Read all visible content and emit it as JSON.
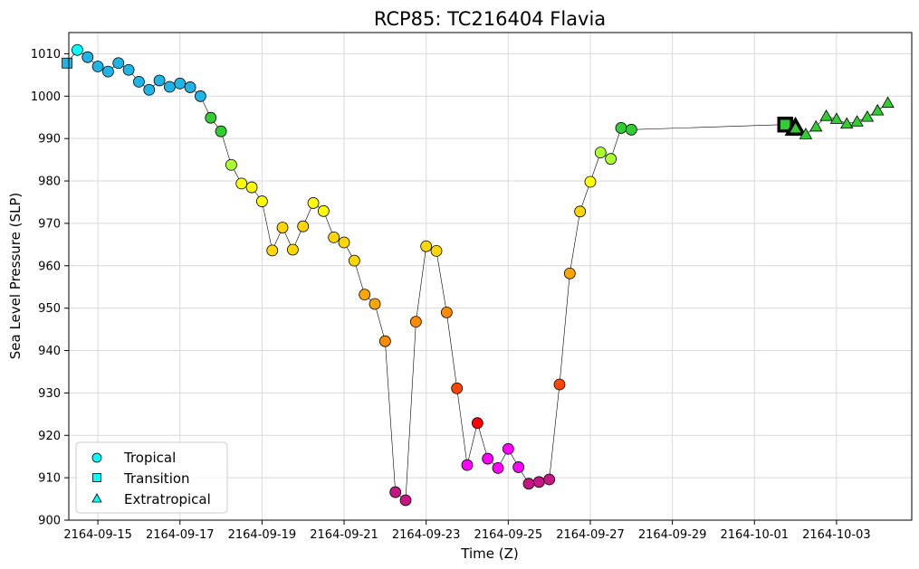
{
  "chart_data": {
    "type": "scatter",
    "title": "RCP85: TC216404 Flavia",
    "xlabel": "Time (Z)",
    "ylabel": "Sea Level Pressure (SLP)",
    "ylim": [
      900,
      1015
    ],
    "xlim": [
      "2164-09-14 07:00",
      "2164-10-04 20:00"
    ],
    "grid": true,
    "yticks": [
      900,
      910,
      920,
      930,
      940,
      950,
      960,
      970,
      980,
      990,
      1000,
      1010
    ],
    "xticks": [
      "2164-09-15",
      "2164-09-17",
      "2164-09-19",
      "2164-09-21",
      "2164-09-23",
      "2164-09-25",
      "2164-09-27",
      "2164-09-29",
      "2164-10-01",
      "2164-10-03"
    ],
    "legend": {
      "position": "bottom-left",
      "entries": [
        {
          "label": "Tropical",
          "marker": "circle",
          "color": "#00ffff"
        },
        {
          "label": "Transition",
          "marker": "square",
          "color": "#00ffff"
        },
        {
          "label": "Extratropical",
          "marker": "triangle",
          "color": "#00ffff"
        }
      ]
    },
    "points": [
      {
        "t": "2164-09-14 06:00",
        "slp": 1007.8,
        "marker": "square",
        "color": "#1eb4e6"
      },
      {
        "t": "2164-09-14 12:00",
        "slp": 1010.9,
        "marker": "circle",
        "color": "#00ffff"
      },
      {
        "t": "2164-09-14 18:00",
        "slp": 1009.2,
        "marker": "circle",
        "color": "#1eb4e6"
      },
      {
        "t": "2164-09-15 00:00",
        "slp": 1007.0,
        "marker": "circle",
        "color": "#1eb4e6"
      },
      {
        "t": "2164-09-15 06:00",
        "slp": 1005.8,
        "marker": "circle",
        "color": "#1eb4e6"
      },
      {
        "t": "2164-09-15 12:00",
        "slp": 1007.8,
        "marker": "circle",
        "color": "#1eb4e6"
      },
      {
        "t": "2164-09-15 18:00",
        "slp": 1006.2,
        "marker": "circle",
        "color": "#1eb4e6"
      },
      {
        "t": "2164-09-16 00:00",
        "slp": 1003.4,
        "marker": "circle",
        "color": "#1eb4e6"
      },
      {
        "t": "2164-09-16 06:00",
        "slp": 1001.5,
        "marker": "circle",
        "color": "#1eb4e6"
      },
      {
        "t": "2164-09-16 12:00",
        "slp": 1003.7,
        "marker": "circle",
        "color": "#1eb4e6"
      },
      {
        "t": "2164-09-16 18:00",
        "slp": 1002.2,
        "marker": "circle",
        "color": "#1eb4e6"
      },
      {
        "t": "2164-09-17 00:00",
        "slp": 1003.0,
        "marker": "circle",
        "color": "#1eb4e6"
      },
      {
        "t": "2164-09-17 06:00",
        "slp": 1002.1,
        "marker": "circle",
        "color": "#1eb4e6"
      },
      {
        "t": "2164-09-17 12:00",
        "slp": 1000.0,
        "marker": "circle",
        "color": "#1eb4e6"
      },
      {
        "t": "2164-09-17 18:00",
        "slp": 994.9,
        "marker": "circle",
        "color": "#32cd32"
      },
      {
        "t": "2164-09-18 00:00",
        "slp": 991.7,
        "marker": "circle",
        "color": "#32cd32"
      },
      {
        "t": "2164-09-18 06:00",
        "slp": 983.8,
        "marker": "circle",
        "color": "#adff2f"
      },
      {
        "t": "2164-09-18 12:00",
        "slp": 979.4,
        "marker": "circle",
        "color": "#ffff00"
      },
      {
        "t": "2164-09-18 18:00",
        "slp": 978.5,
        "marker": "circle",
        "color": "#ffff00"
      },
      {
        "t": "2164-09-19 00:00",
        "slp": 975.2,
        "marker": "circle",
        "color": "#ffff00"
      },
      {
        "t": "2164-09-19 06:00",
        "slp": 963.6,
        "marker": "circle",
        "color": "#ffd700"
      },
      {
        "t": "2164-09-19 12:00",
        "slp": 969.0,
        "marker": "circle",
        "color": "#ffd700"
      },
      {
        "t": "2164-09-19 18:00",
        "slp": 963.8,
        "marker": "circle",
        "color": "#ffd700"
      },
      {
        "t": "2164-09-20 00:00",
        "slp": 969.3,
        "marker": "circle",
        "color": "#ffd700"
      },
      {
        "t": "2164-09-20 06:00",
        "slp": 974.8,
        "marker": "circle",
        "color": "#ffff00"
      },
      {
        "t": "2164-09-20 12:00",
        "slp": 972.9,
        "marker": "circle",
        "color": "#ffff00"
      },
      {
        "t": "2164-09-20 18:00",
        "slp": 966.7,
        "marker": "circle",
        "color": "#ffd700"
      },
      {
        "t": "2164-09-21 00:00",
        "slp": 965.5,
        "marker": "circle",
        "color": "#ffd700"
      },
      {
        "t": "2164-09-21 06:00",
        "slp": 961.2,
        "marker": "circle",
        "color": "#ffd700"
      },
      {
        "t": "2164-09-21 12:00",
        "slp": 953.2,
        "marker": "circle",
        "color": "#ffa500"
      },
      {
        "t": "2164-09-21 18:00",
        "slp": 951.0,
        "marker": "circle",
        "color": "#ffa500"
      },
      {
        "t": "2164-09-22 00:00",
        "slp": 942.2,
        "marker": "circle",
        "color": "#ff8c00"
      },
      {
        "t": "2164-09-22 06:00",
        "slp": 906.6,
        "marker": "circle",
        "color": "#c71585"
      },
      {
        "t": "2164-09-22 12:00",
        "slp": 904.7,
        "marker": "circle",
        "color": "#c71585"
      },
      {
        "t": "2164-09-22 18:00",
        "slp": 946.8,
        "marker": "circle",
        "color": "#ff8c00"
      },
      {
        "t": "2164-09-23 00:00",
        "slp": 964.6,
        "marker": "circle",
        "color": "#ffd700"
      },
      {
        "t": "2164-09-23 06:00",
        "slp": 963.5,
        "marker": "circle",
        "color": "#ffd700"
      },
      {
        "t": "2164-09-23 12:00",
        "slp": 949.0,
        "marker": "circle",
        "color": "#ff8c00"
      },
      {
        "t": "2164-09-23 18:00",
        "slp": 931.1,
        "marker": "circle",
        "color": "#ff4500"
      },
      {
        "t": "2164-09-24 00:00",
        "slp": 913.0,
        "marker": "circle",
        "color": "#ff00ff"
      },
      {
        "t": "2164-09-24 06:00",
        "slp": 922.9,
        "marker": "circle",
        "color": "#ff0000"
      },
      {
        "t": "2164-09-24 12:00",
        "slp": 914.5,
        "marker": "circle",
        "color": "#ff00ff"
      },
      {
        "t": "2164-09-24 18:00",
        "slp": 912.3,
        "marker": "circle",
        "color": "#ff00ff"
      },
      {
        "t": "2164-09-25 00:00",
        "slp": 916.8,
        "marker": "circle",
        "color": "#ff00ff"
      },
      {
        "t": "2164-09-25 06:00",
        "slp": 912.5,
        "marker": "circle",
        "color": "#ff00ff"
      },
      {
        "t": "2164-09-25 12:00",
        "slp": 908.6,
        "marker": "circle",
        "color": "#c71585"
      },
      {
        "t": "2164-09-25 18:00",
        "slp": 909.0,
        "marker": "circle",
        "color": "#c71585"
      },
      {
        "t": "2164-09-26 00:00",
        "slp": 909.6,
        "marker": "circle",
        "color": "#c71585"
      },
      {
        "t": "2164-09-26 06:00",
        "slp": 932.0,
        "marker": "circle",
        "color": "#ff4500"
      },
      {
        "t": "2164-09-26 12:00",
        "slp": 958.2,
        "marker": "circle",
        "color": "#ffa500"
      },
      {
        "t": "2164-09-26 18:00",
        "slp": 972.8,
        "marker": "circle",
        "color": "#ffd700"
      },
      {
        "t": "2164-09-27 00:00",
        "slp": 979.8,
        "marker": "circle",
        "color": "#ffff00"
      },
      {
        "t": "2164-09-27 06:00",
        "slp": 986.7,
        "marker": "circle",
        "color": "#adff2f"
      },
      {
        "t": "2164-09-27 12:00",
        "slp": 985.2,
        "marker": "circle",
        "color": "#adff2f"
      },
      {
        "t": "2164-09-27 18:00",
        "slp": 992.5,
        "marker": "circle",
        "color": "#32cd32"
      },
      {
        "t": "2164-09-28 00:00",
        "slp": 992.1,
        "marker": "circle",
        "color": "#32cd32"
      },
      {
        "t": "2164-10-01 18:00",
        "slp": 993.3,
        "marker": "square",
        "color": "#32cd32",
        "highlight": true
      },
      {
        "t": "2164-10-02 00:00",
        "slp": 992.5,
        "marker": "triangle",
        "color": "#32cd32",
        "highlight": true
      },
      {
        "t": "2164-10-02 06:00",
        "slp": 991.0,
        "marker": "triangle",
        "color": "#32cd32"
      },
      {
        "t": "2164-10-02 12:00",
        "slp": 992.8,
        "marker": "triangle",
        "color": "#32cd32"
      },
      {
        "t": "2164-10-02 18:00",
        "slp": 995.3,
        "marker": "triangle",
        "color": "#32cd32"
      },
      {
        "t": "2164-10-03 00:00",
        "slp": 994.6,
        "marker": "triangle",
        "color": "#32cd32"
      },
      {
        "t": "2164-10-03 06:00",
        "slp": 993.5,
        "marker": "triangle",
        "color": "#32cd32"
      },
      {
        "t": "2164-10-03 12:00",
        "slp": 994.0,
        "marker": "triangle",
        "color": "#32cd32"
      },
      {
        "t": "2164-10-03 18:00",
        "slp": 995.1,
        "marker": "triangle",
        "color": "#32cd32"
      },
      {
        "t": "2164-10-04 00:00",
        "slp": 996.6,
        "marker": "triangle",
        "color": "#32cd32"
      },
      {
        "t": "2164-10-04 06:00",
        "slp": 998.4,
        "marker": "triangle",
        "color": "#32cd32"
      }
    ]
  }
}
